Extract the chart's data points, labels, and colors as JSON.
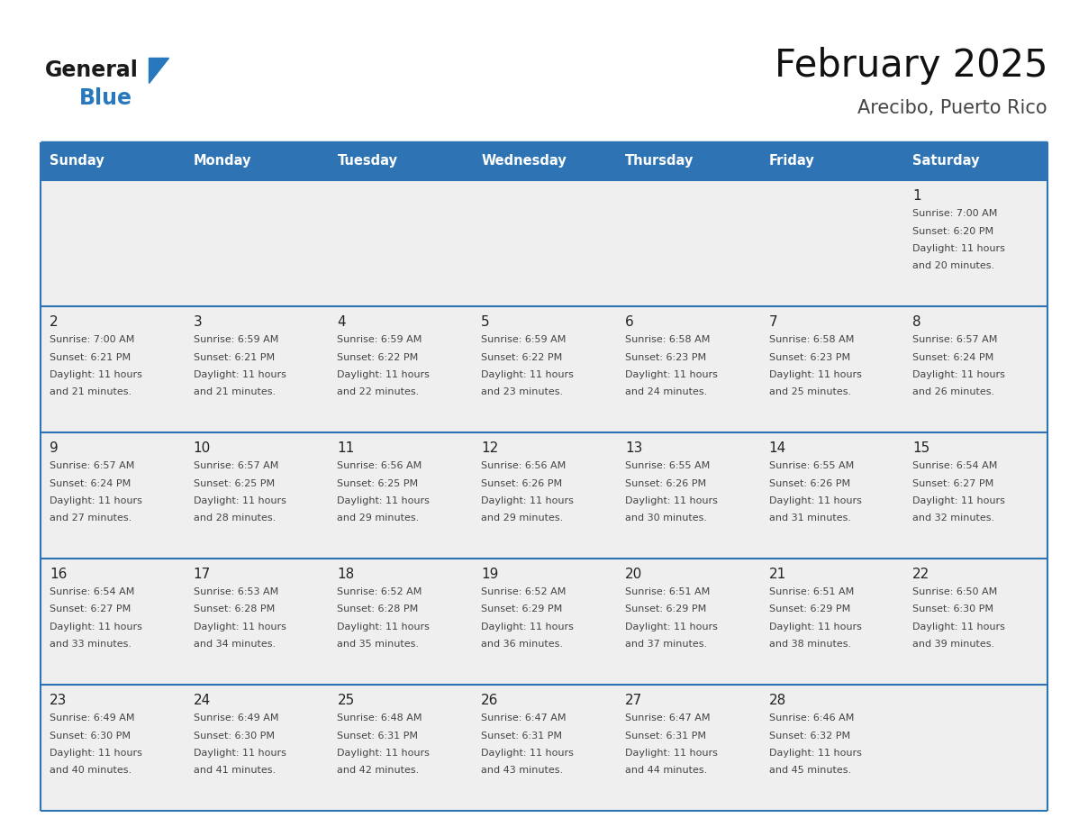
{
  "title": "February 2025",
  "subtitle": "Arecibo, Puerto Rico",
  "header_bg": "#2E74B5",
  "header_text_color": "#FFFFFF",
  "cell_bg": "#EFEFEF",
  "border_color": "#2E74B5",
  "text_color_dark": "#333333",
  "text_color_info": "#555555",
  "logo_text_color": "#1a1a1a",
  "logo_blue_color": "#2878BE",
  "day_headers": [
    "Sunday",
    "Monday",
    "Tuesday",
    "Wednesday",
    "Thursday",
    "Friday",
    "Saturday"
  ],
  "weeks": [
    [
      {
        "day": null,
        "sunrise": null,
        "sunset": null,
        "daylight": null
      },
      {
        "day": null,
        "sunrise": null,
        "sunset": null,
        "daylight": null
      },
      {
        "day": null,
        "sunrise": null,
        "sunset": null,
        "daylight": null
      },
      {
        "day": null,
        "sunrise": null,
        "sunset": null,
        "daylight": null
      },
      {
        "day": null,
        "sunrise": null,
        "sunset": null,
        "daylight": null
      },
      {
        "day": null,
        "sunrise": null,
        "sunset": null,
        "daylight": null
      },
      {
        "day": 1,
        "sunrise": "7:00 AM",
        "sunset": "6:20 PM",
        "daylight": "11 hours and 20 minutes."
      }
    ],
    [
      {
        "day": 2,
        "sunrise": "7:00 AM",
        "sunset": "6:21 PM",
        "daylight": "11 hours and 21 minutes."
      },
      {
        "day": 3,
        "sunrise": "6:59 AM",
        "sunset": "6:21 PM",
        "daylight": "11 hours and 21 minutes."
      },
      {
        "day": 4,
        "sunrise": "6:59 AM",
        "sunset": "6:22 PM",
        "daylight": "11 hours and 22 minutes."
      },
      {
        "day": 5,
        "sunrise": "6:59 AM",
        "sunset": "6:22 PM",
        "daylight": "11 hours and 23 minutes."
      },
      {
        "day": 6,
        "sunrise": "6:58 AM",
        "sunset": "6:23 PM",
        "daylight": "11 hours and 24 minutes."
      },
      {
        "day": 7,
        "sunrise": "6:58 AM",
        "sunset": "6:23 PM",
        "daylight": "11 hours and 25 minutes."
      },
      {
        "day": 8,
        "sunrise": "6:57 AM",
        "sunset": "6:24 PM",
        "daylight": "11 hours and 26 minutes."
      }
    ],
    [
      {
        "day": 9,
        "sunrise": "6:57 AM",
        "sunset": "6:24 PM",
        "daylight": "11 hours and 27 minutes."
      },
      {
        "day": 10,
        "sunrise": "6:57 AM",
        "sunset": "6:25 PM",
        "daylight": "11 hours and 28 minutes."
      },
      {
        "day": 11,
        "sunrise": "6:56 AM",
        "sunset": "6:25 PM",
        "daylight": "11 hours and 29 minutes."
      },
      {
        "day": 12,
        "sunrise": "6:56 AM",
        "sunset": "6:26 PM",
        "daylight": "11 hours and 29 minutes."
      },
      {
        "day": 13,
        "sunrise": "6:55 AM",
        "sunset": "6:26 PM",
        "daylight": "11 hours and 30 minutes."
      },
      {
        "day": 14,
        "sunrise": "6:55 AM",
        "sunset": "6:26 PM",
        "daylight": "11 hours and 31 minutes."
      },
      {
        "day": 15,
        "sunrise": "6:54 AM",
        "sunset": "6:27 PM",
        "daylight": "11 hours and 32 minutes."
      }
    ],
    [
      {
        "day": 16,
        "sunrise": "6:54 AM",
        "sunset": "6:27 PM",
        "daylight": "11 hours and 33 minutes."
      },
      {
        "day": 17,
        "sunrise": "6:53 AM",
        "sunset": "6:28 PM",
        "daylight": "11 hours and 34 minutes."
      },
      {
        "day": 18,
        "sunrise": "6:52 AM",
        "sunset": "6:28 PM",
        "daylight": "11 hours and 35 minutes."
      },
      {
        "day": 19,
        "sunrise": "6:52 AM",
        "sunset": "6:29 PM",
        "daylight": "11 hours and 36 minutes."
      },
      {
        "day": 20,
        "sunrise": "6:51 AM",
        "sunset": "6:29 PM",
        "daylight": "11 hours and 37 minutes."
      },
      {
        "day": 21,
        "sunrise": "6:51 AM",
        "sunset": "6:29 PM",
        "daylight": "11 hours and 38 minutes."
      },
      {
        "day": 22,
        "sunrise": "6:50 AM",
        "sunset": "6:30 PM",
        "daylight": "11 hours and 39 minutes."
      }
    ],
    [
      {
        "day": 23,
        "sunrise": "6:49 AM",
        "sunset": "6:30 PM",
        "daylight": "11 hours and 40 minutes."
      },
      {
        "day": 24,
        "sunrise": "6:49 AM",
        "sunset": "6:30 PM",
        "daylight": "11 hours and 41 minutes."
      },
      {
        "day": 25,
        "sunrise": "6:48 AM",
        "sunset": "6:31 PM",
        "daylight": "11 hours and 42 minutes."
      },
      {
        "day": 26,
        "sunrise": "6:47 AM",
        "sunset": "6:31 PM",
        "daylight": "11 hours and 43 minutes."
      },
      {
        "day": 27,
        "sunrise": "6:47 AM",
        "sunset": "6:31 PM",
        "daylight": "11 hours and 44 minutes."
      },
      {
        "day": 28,
        "sunrise": "6:46 AM",
        "sunset": "6:32 PM",
        "daylight": "11 hours and 45 minutes."
      },
      {
        "day": null,
        "sunrise": null,
        "sunset": null,
        "daylight": null
      }
    ]
  ],
  "fig_width": 11.88,
  "fig_height": 9.18,
  "dpi": 100
}
